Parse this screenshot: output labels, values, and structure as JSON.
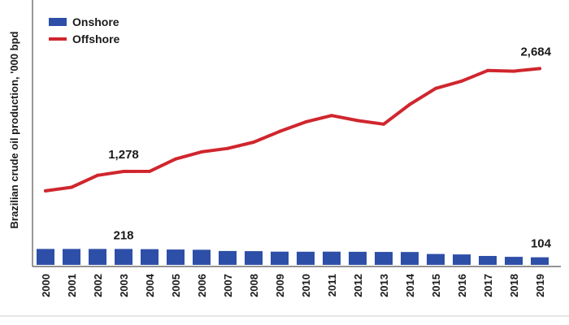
{
  "chart_data": {
    "type": "bar+line",
    "ylabel": "Brazilian crude oil production, '000 bpd",
    "categories": [
      "2000",
      "2001",
      "2002",
      "2003",
      "2004",
      "2005",
      "2006",
      "2007",
      "2008",
      "2009",
      "2010",
      "2011",
      "2012",
      "2013",
      "2014",
      "2015",
      "2016",
      "2017",
      "2018",
      "2019"
    ],
    "series": [
      {
        "name": "Onshore",
        "type": "bar",
        "color": "#2e4fa8",
        "values": [
          218,
          218,
          218,
          218,
          215,
          210,
          207,
          190,
          188,
          181,
          180,
          181,
          179,
          177,
          176,
          149,
          143,
          122,
          110,
          104
        ]
      },
      {
        "name": "Offshore",
        "type": "line",
        "color": "#d0262e",
        "values": [
          1012,
          1061,
          1225,
          1278,
          1279,
          1448,
          1546,
          1592,
          1678,
          1824,
          1955,
          2042,
          1973,
          1925,
          2193,
          2413,
          2513,
          2658,
          2649,
          2684
        ]
      }
    ],
    "annotations": [
      {
        "series": "Offshore",
        "category": "2003",
        "label": "1,278"
      },
      {
        "series": "Offshore",
        "category": "2019",
        "label": "2,684"
      },
      {
        "series": "Onshore",
        "category": "2003",
        "label": "218"
      },
      {
        "series": "Onshore",
        "category": "2019",
        "label": "104"
      }
    ],
    "ylim": [
      0,
      4500
    ],
    "legend": "top-left",
    "grid": false
  }
}
